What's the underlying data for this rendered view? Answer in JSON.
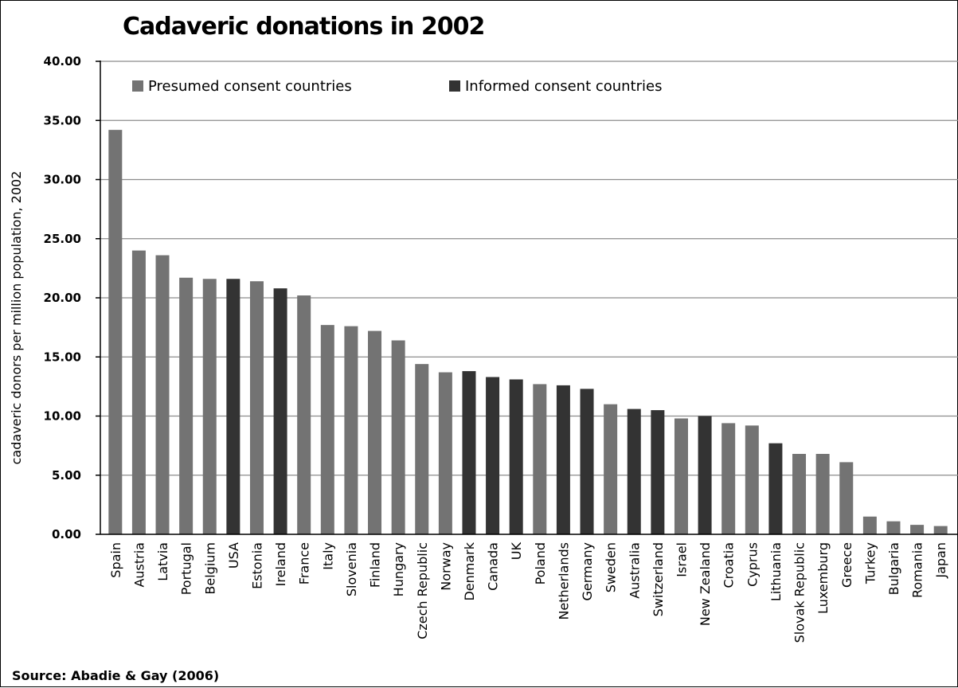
{
  "chart_data": {
    "type": "bar",
    "title": "Cadaveric donations in 2002",
    "ylabel": "cadaveric donors per million population, 2002",
    "xlabel": "",
    "source": "Source: Abadie & Gay (2006)",
    "ylim": [
      0,
      40
    ],
    "yticks": [
      "0.00",
      "5.00",
      "10.00",
      "15.00",
      "20.00",
      "25.00",
      "30.00",
      "35.00",
      "40.00"
    ],
    "grid": true,
    "legend_position": "top",
    "legend": [
      {
        "name": "Presumed consent countries",
        "group": "presumed",
        "color": "#737373"
      },
      {
        "name": "Informed consent countries",
        "group": "informed",
        "color": "#333333"
      }
    ],
    "categories": [
      "Spain",
      "Austria",
      "Latvia",
      "Portugal",
      "Belgium",
      "USA",
      "Estonia",
      "Ireland",
      "France",
      "Italy",
      "Slovenia",
      "Finland",
      "Hungary",
      "Czech Republic",
      "Norway",
      "Denmark",
      "Canada",
      "UK",
      "Poland",
      "Netherlands",
      "Germany",
      "Sweden",
      "Australia",
      "Switzerland",
      "Israel",
      "New Zealand",
      "Croatia",
      "Cyprus",
      "Lithuania",
      "Slovak Republic",
      "Luxemburg",
      "Greece",
      "Turkey",
      "Bulgaria",
      "Romania",
      "Japan"
    ],
    "values": [
      34.2,
      24.0,
      23.6,
      21.7,
      21.6,
      21.6,
      21.4,
      20.8,
      20.2,
      17.7,
      17.6,
      17.2,
      16.4,
      14.4,
      13.7,
      13.8,
      13.3,
      13.1,
      12.7,
      12.6,
      12.3,
      11.0,
      10.6,
      10.5,
      9.8,
      10.0,
      9.4,
      9.2,
      7.7,
      6.8,
      6.8,
      6.1,
      1.5,
      1.1,
      0.8,
      0.7
    ],
    "groups": [
      "presumed",
      "presumed",
      "presumed",
      "presumed",
      "presumed",
      "informed",
      "presumed",
      "informed",
      "presumed",
      "presumed",
      "presumed",
      "presumed",
      "presumed",
      "presumed",
      "presumed",
      "informed",
      "informed",
      "informed",
      "presumed",
      "informed",
      "informed",
      "presumed",
      "informed",
      "informed",
      "presumed",
      "informed",
      "presumed",
      "presumed",
      "informed",
      "presumed",
      "presumed",
      "presumed",
      "presumed",
      "presumed",
      "presumed",
      "presumed"
    ]
  }
}
